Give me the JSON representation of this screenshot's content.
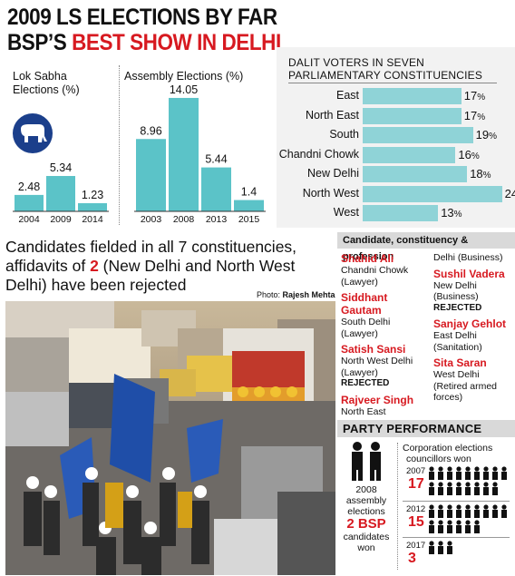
{
  "headline": {
    "line1": "2009 LS ELECTIONS BY FAR",
    "line2_black": "BSP’S ",
    "line2_red": "BEST SHOW IN DELHI"
  },
  "lok_sabha": {
    "label_line1": "Lok Sabha",
    "label_line2": "Elections (%)"
  },
  "assembly": {
    "label": "Assembly Elections (%)"
  },
  "dalit": {
    "title_line1": "DALIT VOTERS IN SEVEN",
    "title_line2": "PARLIAMENTARY CONSTITUENCIES"
  },
  "chart_data": [
    {
      "type": "bar",
      "title": "Lok Sabha Elections (%)",
      "categories": [
        "2004",
        "2009",
        "2014"
      ],
      "values": [
        2.48,
        5.34,
        1.23
      ],
      "value_labels": [
        "2.48",
        "5.34",
        "1.23"
      ]
    },
    {
      "type": "bar",
      "title": "Assembly Elections (%)",
      "categories": [
        "2003",
        "2008",
        "2013",
        "2015"
      ],
      "values": [
        8.96,
        14.05,
        5.44,
        1.4
      ],
      "value_labels": [
        "8.96",
        "14.05",
        "5.44",
        "1.4"
      ]
    },
    {
      "type": "bar",
      "orientation": "horizontal",
      "title": "DALIT VOTERS IN SEVEN PARLIAMENTARY CONSTITUENCIES",
      "categories": [
        "East",
        "North East",
        "South",
        "Chandni Chowk",
        "New Delhi",
        "North West",
        "West"
      ],
      "values": [
        17,
        17,
        19,
        16,
        18,
        24,
        13
      ],
      "unit": "%"
    }
  ],
  "story": {
    "line1": "Candidates fielded in all 7 constituencies,",
    "line2_pre": "affidavits of ",
    "line2_num": "2",
    "line2_post": " (New Delhi and North West",
    "line3": "Delhi) have been rejected",
    "photo_credit_label": "Photo: ",
    "photo_credit_name": "Rajesh Mehta"
  },
  "roster": {
    "header": "Candidate, constituency & profession",
    "col1": [
      {
        "name": "Shahid Ali",
        "detail": "Chandni Chowk (Lawyer)",
        "rejected": ""
      },
      {
        "name": "Siddhant Gautam",
        "detail": "South Delhi (Lawyer)",
        "rejected": ""
      },
      {
        "name": "Satish Sansi",
        "detail": "North West Delhi (Lawyer)",
        "rejected": "REJECTED"
      },
      {
        "name": "Rajveer Singh",
        "detail": "North East",
        "rejected": ""
      }
    ],
    "col2_top": "Delhi (Business)",
    "col2": [
      {
        "name": "Sushil Vadera",
        "detail": "New Delhi (Business)",
        "rejected": "REJECTED"
      },
      {
        "name": "Sanjay Gehlot",
        "detail": "East Delhi (Sanitation)",
        "rejected": ""
      },
      {
        "name": "Sita Saran",
        "detail": "West Delhi (Retired armed forces)",
        "rejected": ""
      }
    ]
  },
  "party_performance": {
    "header": "PARTY PERFORMANCE",
    "left_line1": "2008",
    "left_line2": "assembly",
    "left_line3": "elections",
    "left_big": "2 BSP",
    "left_line4": "candidates",
    "left_line5": "won",
    "right_title_line1": "Corporation elections",
    "right_title_line2": "councillors won",
    "rows": [
      {
        "year": "2007",
        "count": "17",
        "icons": 17
      },
      {
        "year": "2012",
        "count": "15",
        "icons": 15
      },
      {
        "year": "2017",
        "count": "3",
        "icons": 3
      }
    ]
  },
  "colors": {
    "accent_red": "#d71920",
    "bar": "#5bc3c8",
    "dalit_bar": "#8fd3d7",
    "panel_gray": "#f2f2f2",
    "bsp_blue": "#1b3f8b"
  }
}
